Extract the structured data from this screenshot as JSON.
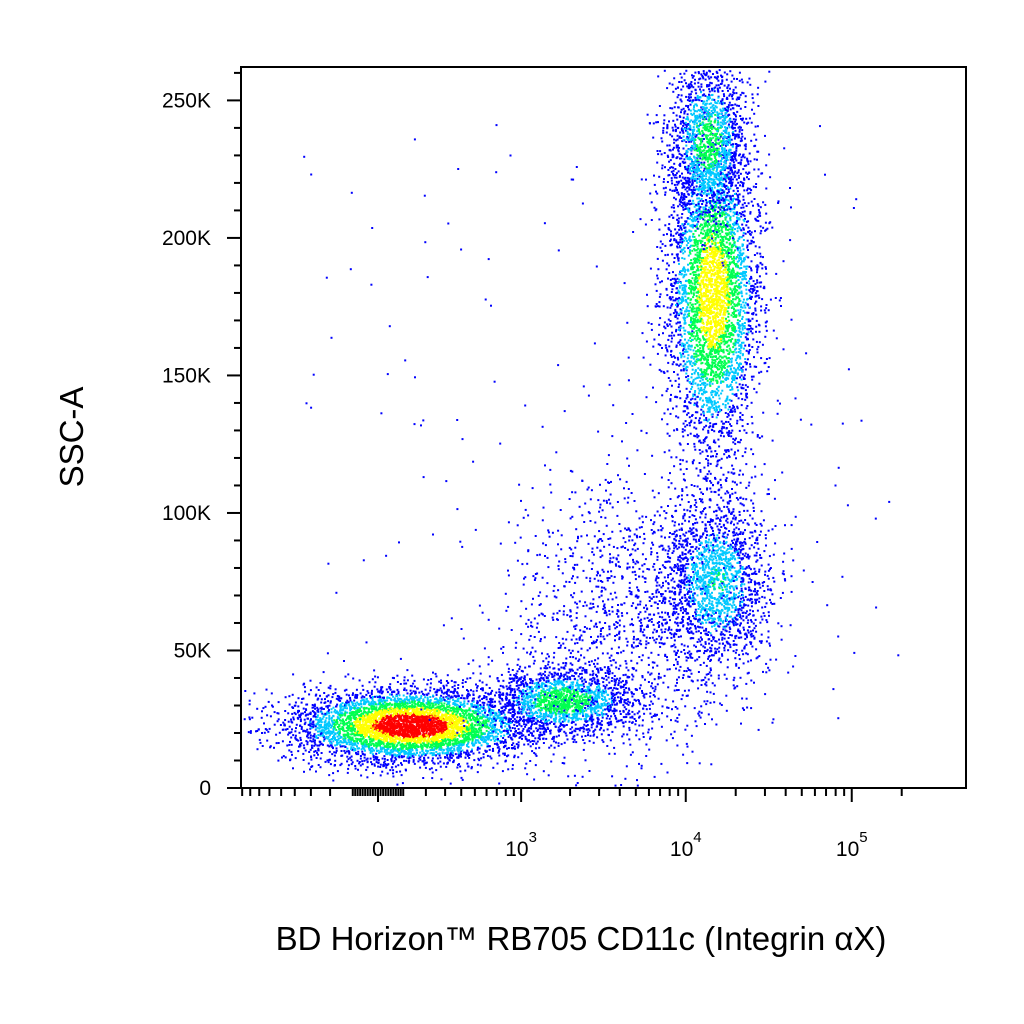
{
  "chart_data": {
    "type": "scatter",
    "subtype": "flow-cytometry-density-dot-plot",
    "xlabel": "BD Horizon™ RB705 CD11c (Integrin αX)",
    "ylabel": "SSC-A",
    "x_scale": "biexponential",
    "y_scale": "linear",
    "ylim": [
      0,
      262144
    ],
    "y_ticks": [
      {
        "value": 0,
        "label": "0"
      },
      {
        "value": 50000,
        "label": "50K"
      },
      {
        "value": 100000,
        "label": "100K"
      },
      {
        "value": 150000,
        "label": "150K"
      },
      {
        "value": 200000,
        "label": "200K"
      },
      {
        "value": 250000,
        "label": "250K"
      }
    ],
    "x_ticks": [
      {
        "value": 0,
        "base": "0",
        "exp": ""
      },
      {
        "value": 1000,
        "base": "10",
        "exp": "3"
      },
      {
        "value": 10000,
        "base": "10",
        "exp": "4"
      },
      {
        "value": 100000,
        "base": "10",
        "exp": "5"
      }
    ],
    "grid": false,
    "legend": "none",
    "density_colors": [
      "#0000ff",
      "#00c8ff",
      "#00ff50",
      "#ffff00",
      "#ff0000"
    ],
    "populations": [
      {
        "cx": 130,
        "cy": 23000,
        "sx": 0.35,
        "sy": 6500,
        "n": 5200,
        "peak": 1.0
      },
      {
        "cx": 1800,
        "cy": 32000,
        "sx": 0.22,
        "sy": 6000,
        "n": 1600,
        "peak": 0.55
      },
      {
        "cx": 14500,
        "cy": 180000,
        "sx": 0.14,
        "sy": 30000,
        "n": 4200,
        "peak": 0.75
      },
      {
        "cx": 13500,
        "cy": 235000,
        "sx": 0.12,
        "sy": 15000,
        "n": 1500,
        "peak": 0.5
      },
      {
        "cx": 15000,
        "cy": 75000,
        "sx": 0.16,
        "sy": 16000,
        "n": 1800,
        "peak": 0.4
      },
      {
        "cx": 4000,
        "cy": 60000,
        "sx": 0.35,
        "sy": 28000,
        "n": 1300,
        "peak": 0.15
      }
    ]
  }
}
